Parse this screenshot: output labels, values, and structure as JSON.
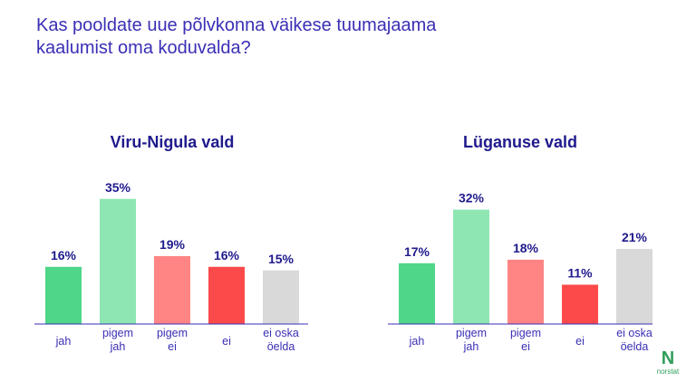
{
  "question": {
    "line1": "Kas pooldate uue põlvkonna väikese tuumajaama",
    "line2": "kaalumist oma koduvalda?"
  },
  "chart_data": [
    {
      "type": "bar",
      "title": "Viru-Nigula vald",
      "categories": [
        [
          "jah"
        ],
        [
          "pigem",
          "jah"
        ],
        [
          "pigem",
          "ei"
        ],
        [
          "ei"
        ],
        [
          "ei oska",
          "öelda"
        ]
      ],
      "values": [
        16,
        35,
        19,
        16,
        15
      ],
      "value_labels": [
        "16%",
        "35%",
        "19%",
        "16%",
        "15%"
      ],
      "colors": [
        "#4fd688",
        "#8ee6b2",
        "#ff8585",
        "#fc4a4a",
        "#d9d9d9"
      ],
      "ylim": [
        0,
        40
      ],
      "xlabel": "",
      "ylabel": ""
    },
    {
      "type": "bar",
      "title": "Lüganuse vald",
      "categories": [
        [
          "jah"
        ],
        [
          "pigem",
          "jah"
        ],
        [
          "pigem",
          "ei"
        ],
        [
          "ei"
        ],
        [
          "ei oska",
          "öelda"
        ]
      ],
      "values": [
        17,
        32,
        18,
        11,
        21
      ],
      "value_labels": [
        "17%",
        "32%",
        "18%",
        "11%",
        "21%"
      ],
      "colors": [
        "#4fd688",
        "#8ee6b2",
        "#ff8585",
        "#fc4a4a",
        "#d9d9d9"
      ],
      "ylim": [
        0,
        40
      ],
      "xlabel": "",
      "ylabel": ""
    }
  ],
  "logo": {
    "mark": "N",
    "text": "norstat"
  }
}
